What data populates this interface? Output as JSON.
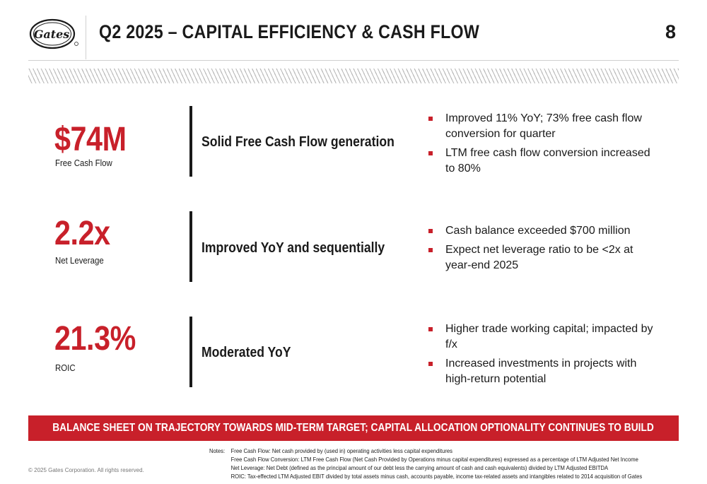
{
  "header": {
    "logo_text": "Gates",
    "title": "Q2 2025 – CAPITAL EFFICIENCY & CASH FLOW",
    "page_number": "8"
  },
  "metrics": [
    {
      "value": "$74M",
      "label": "Free Cash Flow",
      "headline": "Solid Free Cash Flow generation",
      "bullets": [
        "Improved 11% YoY; 73% free cash flow conversion for quarter",
        "LTM free cash flow conversion increased to 80%"
      ]
    },
    {
      "value": "2.2x",
      "label": "Net Leverage",
      "headline": "Improved YoY and sequentially",
      "bullets": [
        "Cash balance exceeded $700 million",
        "Expect net leverage ratio to be <2x at year-end 2025"
      ]
    },
    {
      "value": "21.3%",
      "label": "ROIC",
      "headline": "Moderated YoY",
      "bullets": [
        "Higher trade working capital; impacted by f/x",
        "Increased investments in projects with high-return potential"
      ]
    }
  ],
  "banner": "BALANCE SHEET ON TRAJECTORY TOWARDS MID-TERM TARGET; CAPITAL ALLOCATION OPTIONALITY CONTINUES TO BUILD",
  "footer": {
    "copyright": "© 2025 Gates Corporation. All rights reserved.",
    "notes_label": "Notes:",
    "notes": [
      "Free Cash Flow: Net cash provided by (used in) operating activities less capital expenditures",
      "Free Cash Flow Conversion:  LTM Free Cash Flow (Net Cash Provided by Operations minus capital expenditures) expressed as a percentage of LTM Adjusted Net Income",
      "Net Leverage:  Net Debt (defined as the principal amount of our debt less the carrying amount of cash and cash equivalents) divided by LTM Adjusted EBITDA",
      "ROIC:  Tax-effected LTM Adjusted EBIT divided by total assets minus cash, accounts payable, income tax-related assets and intangibles related to 2014 acquisition of Gates"
    ]
  },
  "colors": {
    "accent_red": "#c8202a",
    "text_dark": "#1a1a1a"
  }
}
